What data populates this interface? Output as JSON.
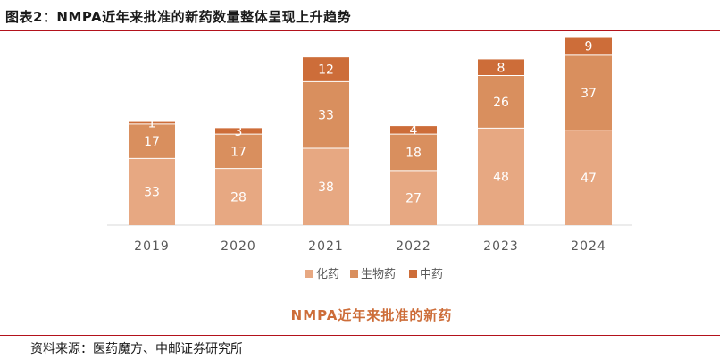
{
  "header": {
    "title": "图表2：NMPA近年来批准的新药数量整体呈现上升趋势"
  },
  "source": "资料来源：医药魔方、中邮证券研究所",
  "chart_data": {
    "type": "bar",
    "stacked": true,
    "title": "NMPA近年来批准的新药",
    "categories": [
      "2019",
      "2020",
      "2021",
      "2022",
      "2023",
      "2024"
    ],
    "series": [
      {
        "name": "化药",
        "values": [
          33,
          28,
          38,
          27,
          48,
          47
        ],
        "color": "#e7a882"
      },
      {
        "name": "生物药",
        "values": [
          17,
          17,
          33,
          18,
          26,
          37
        ],
        "color": "#d98f5e"
      },
      {
        "name": "中药",
        "values": [
          1,
          3,
          12,
          4,
          8,
          9
        ],
        "color": "#cd6d39"
      }
    ],
    "ylim": [
      0,
      95
    ],
    "grid": false,
    "legend_position": "bottom",
    "label_color": "#ffffff",
    "axis_color": "#d9d9d9",
    "tick_color": "#595959",
    "title_color": "#cd6d39"
  }
}
